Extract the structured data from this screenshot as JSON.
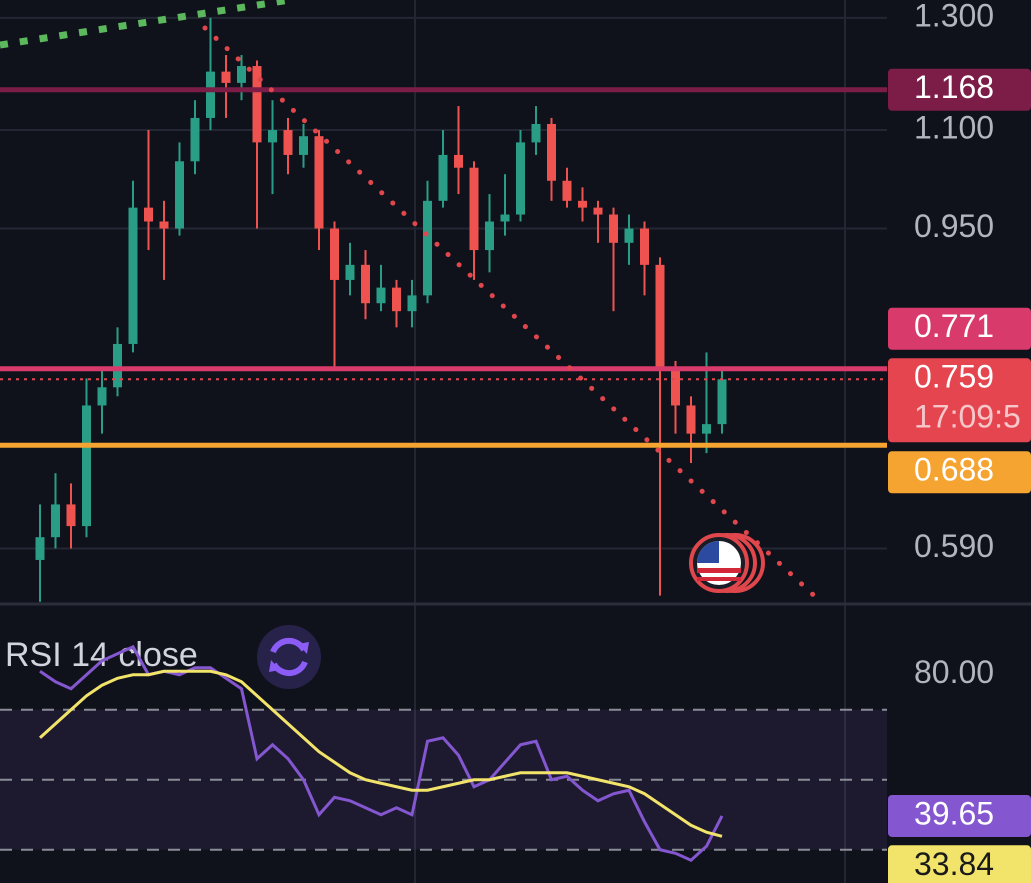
{
  "chart_data": [
    {
      "type": "candlestick",
      "open": [
        0.58,
        0.6,
        0.63,
        0.61,
        0.73,
        0.75,
        0.8,
        0.98,
        0.96,
        0.95,
        1.05,
        1.12,
        1.2,
        1.18,
        1.21,
        1.08,
        1.1,
        1.06,
        1.09,
        0.95,
        0.88,
        0.9,
        0.85,
        0.87,
        0.84,
        0.86,
        0.99,
        1.06,
        1.04,
        0.92,
        0.96,
        0.97,
        1.08,
        1.11,
        1.02,
        0.99,
        0.98,
        0.97,
        0.93,
        0.95,
        0.9,
        0.77,
        0.73,
        0.7,
        0.71
      ],
      "high": [
        0.63,
        0.66,
        0.65,
        0.76,
        0.77,
        0.82,
        1.02,
        1.1,
        0.99,
        1.08,
        1.15,
        1.3,
        1.23,
        1.23,
        1.22,
        1.15,
        1.12,
        1.11,
        1.1,
        0.96,
        0.93,
        0.92,
        0.9,
        0.88,
        0.88,
        1.02,
        1.1,
        1.14,
        1.05,
        1.0,
        1.03,
        1.1,
        1.14,
        1.12,
        1.04,
        1.01,
        0.99,
        0.98,
        0.97,
        0.96,
        0.91,
        0.78,
        0.74,
        0.79,
        0.77
      ],
      "low": [
        0.545,
        0.59,
        0.59,
        0.6,
        0.7,
        0.74,
        0.79,
        0.92,
        0.88,
        0.94,
        1.03,
        1.1,
        1.12,
        1.15,
        0.95,
        1.0,
        1.03,
        1.04,
        0.92,
        0.77,
        0.86,
        0.83,
        0.84,
        0.82,
        0.82,
        0.85,
        0.98,
        1.0,
        0.88,
        0.89,
        0.94,
        0.96,
        1.06,
        0.99,
        0.98,
        0.96,
        0.93,
        0.84,
        0.9,
        0.86,
        0.55,
        0.7,
        0.67,
        0.68,
        0.7
      ],
      "close": [
        0.6,
        0.63,
        0.61,
        0.73,
        0.75,
        0.8,
        0.98,
        0.96,
        0.95,
        1.05,
        1.12,
        1.2,
        1.18,
        1.21,
        1.08,
        1.1,
        1.06,
        1.09,
        0.95,
        0.88,
        0.9,
        0.85,
        0.87,
        0.84,
        0.86,
        0.99,
        1.06,
        1.04,
        0.92,
        0.96,
        0.97,
        1.08,
        1.11,
        1.02,
        0.99,
        0.98,
        0.97,
        0.93,
        0.95,
        0.9,
        0.77,
        0.73,
        0.7,
        0.71,
        0.759
      ],
      "up_color": "#2a9d86",
      "down_color": "#ef5350",
      "log_scale": true,
      "ylim": [
        0.544,
        1.335
      ],
      "yticks": [
        {
          "value": 1.3,
          "label": "1.300"
        },
        {
          "value": 1.1,
          "label": "1.100"
        },
        {
          "value": 0.95,
          "label": "0.950"
        },
        {
          "value": 0.59,
          "label": "0.590"
        }
      ],
      "grid": true,
      "price_lines": [
        {
          "value": 1.168,
          "color": "#7b1d46"
        },
        {
          "value": 0.771,
          "color": "#d93a6c"
        },
        {
          "value": 0.759,
          "color": "#e5454f",
          "style": "dotted",
          "countdown": "17:09:5"
        },
        {
          "value": 0.688,
          "color": "#f5a431"
        }
      ]
    },
    {
      "type": "line",
      "title": "RSI 14 close",
      "series": [
        {
          "color": "#8457d0",
          "values": [
            81,
            78,
            76,
            80,
            84,
            86,
            88,
            80,
            81,
            80,
            82,
            82,
            79,
            76,
            56,
            60,
            56,
            50,
            40,
            45,
            44,
            42,
            40,
            42,
            40,
            61,
            62,
            57,
            48,
            50,
            55,
            60,
            61,
            50,
            51,
            47,
            44,
            46,
            47,
            38,
            30,
            29,
            27,
            31,
            39.65
          ]
        },
        {
          "color": "#f2e46a",
          "values": [
            62,
            66,
            70,
            74,
            77,
            79,
            80,
            80,
            81,
            81,
            81,
            81,
            80,
            78,
            74,
            70,
            66,
            62,
            58,
            55,
            52,
            50,
            49,
            48,
            47,
            47,
            48,
            49,
            50,
            50,
            51,
            52,
            52,
            52,
            52,
            51,
            50,
            49,
            48,
            46,
            43,
            40,
            37,
            35,
            33.84
          ]
        }
      ],
      "ylim": [
        20.5,
        100.5
      ],
      "yticks": [
        {
          "value": 80,
          "label": "80.00"
        }
      ],
      "levels": [
        70,
        50,
        30
      ]
    }
  ]
}
